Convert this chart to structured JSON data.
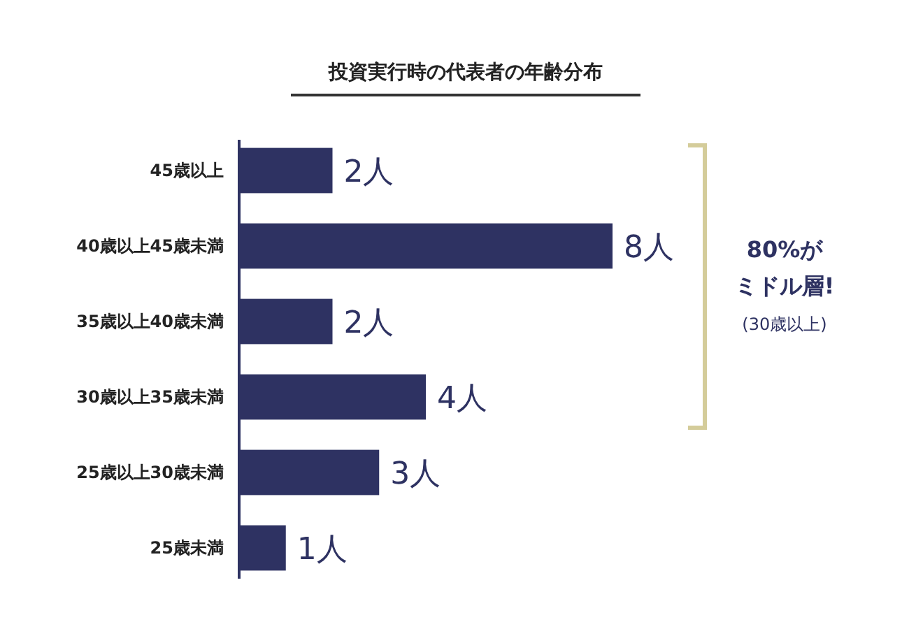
{
  "chart_data": {
    "type": "bar",
    "orientation": "horizontal",
    "title": "投資実行時の代表者の年齢分布",
    "categories": [
      "45歳以上",
      "40歳以上45歳未満",
      "35歳以上40歳未満",
      "30歳以上35歳未満",
      "25歳以上30歳未満",
      "25歳未満"
    ],
    "values": [
      2,
      8,
      2,
      4,
      3,
      1
    ],
    "value_labels": [
      "2人",
      "8人",
      "2人",
      "4人",
      "3人",
      "1人"
    ],
    "color": "#2e3262",
    "annotations": [
      "80%が",
      "ミドル層!",
      "(30歳以上)"
    ]
  }
}
